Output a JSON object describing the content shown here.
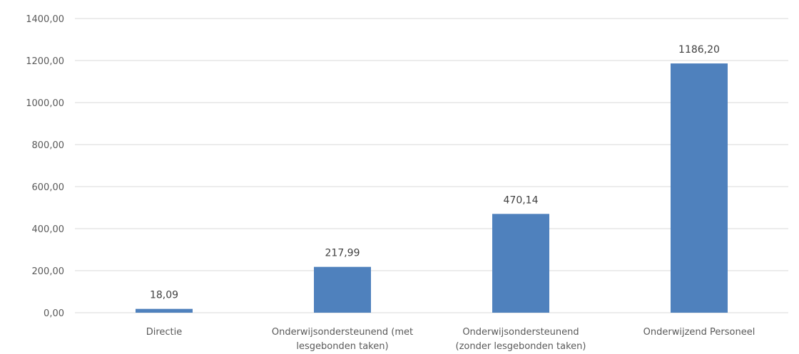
{
  "chart_data": {
    "type": "bar",
    "categories": [
      [
        "Directie"
      ],
      [
        "Onderwijsondersteunend (met",
        "lesgebonden taken)"
      ],
      [
        "Onderwijsondersteunend",
        "(zonder lesgebonden taken)"
      ],
      [
        "Onderwijzend Personeel"
      ]
    ],
    "values": [
      18.09,
      217.99,
      470.14,
      1186.2
    ],
    "value_labels": [
      "18,09",
      "217,99",
      "470,14",
      "1186,20"
    ],
    "ylim": [
      0,
      1400
    ],
    "yticks": [
      0,
      200,
      400,
      600,
      800,
      1000,
      1200,
      1400
    ],
    "ytick_labels": [
      "0,00",
      "200,00",
      "400,00",
      "600,00",
      "800,00",
      "1000,00",
      "1200,00",
      "1400,00"
    ],
    "grid": true,
    "legend": "none",
    "bar_color": "#4f81bd",
    "title": "",
    "xlabel": "",
    "ylabel": ""
  }
}
